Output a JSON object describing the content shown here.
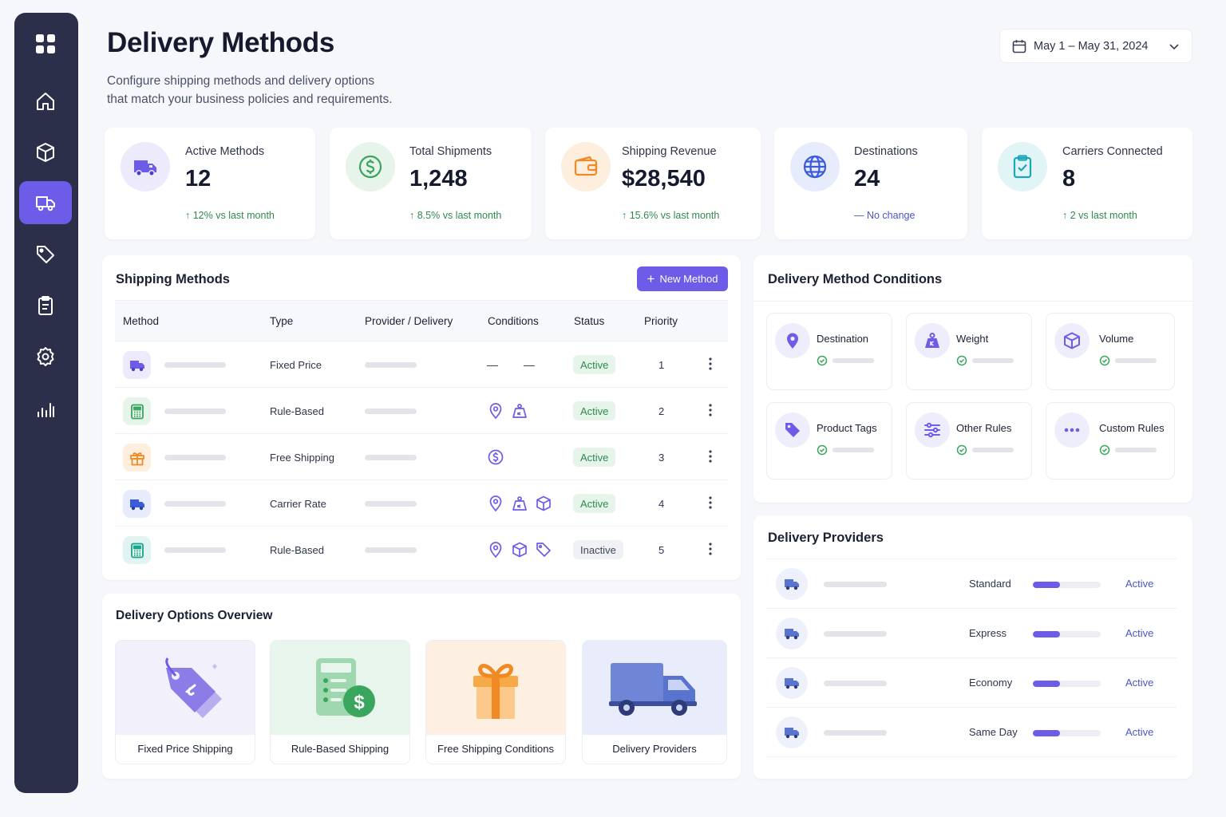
{
  "header": {
    "title": "Delivery Methods",
    "subtitle_line1": "Configure shipping methods and delivery options",
    "subtitle_line2": "that match your business policies and requirements.",
    "date_range": "May 1 – May 31, 2024"
  },
  "sidebar": {
    "items": [
      {
        "icon": "dashboard-grid-icon"
      },
      {
        "icon": "home-icon"
      },
      {
        "icon": "box-icon"
      },
      {
        "icon": "truck-icon",
        "active": true
      },
      {
        "icon": "tag-icon"
      },
      {
        "icon": "clipboard-icon"
      },
      {
        "icon": "gear-icon"
      },
      {
        "icon": "analytics-icon"
      }
    ]
  },
  "stats": [
    {
      "label": "Active Methods",
      "value": "12",
      "change": "12% vs last month",
      "trend": "up",
      "color": "#6c5ce7"
    },
    {
      "label": "Total Shipments",
      "value": "1,248",
      "change": "8.5% vs last month",
      "trend": "up",
      "color": "#3aa55d"
    },
    {
      "label": "Shipping Revenue",
      "value": "$28,540",
      "change": "15.6% vs last month",
      "trend": "up",
      "color": "#f08a24"
    },
    {
      "label": "Destinations",
      "value": "24",
      "change": "No change",
      "trend": "neutral",
      "color": "#3b5bdb"
    },
    {
      "label": "Carriers Connected",
      "value": "8",
      "change": "2 vs last month",
      "trend": "up",
      "color": "#1aa7b8"
    }
  ],
  "shipping_methods": {
    "title": "Shipping Methods",
    "new_button": "New Method",
    "columns": [
      "Method",
      "Type",
      "Provider / Delivery",
      "Conditions",
      "Status",
      "Priority"
    ],
    "rows": [
      {
        "icon": "truck-icon",
        "type": "Fixed Price",
        "conditions": [
          "none"
        ],
        "status": "Active",
        "priority": "1"
      },
      {
        "icon": "calculator-icon",
        "type": "Rule-Based",
        "conditions": [
          "location",
          "weight"
        ],
        "status": "Active",
        "priority": "2"
      },
      {
        "icon": "gift-icon",
        "type": "Free Shipping",
        "conditions": [
          "dollar"
        ],
        "status": "Active",
        "priority": "3"
      },
      {
        "icon": "truck-icon",
        "type": "Carrier Rate",
        "conditions": [
          "location",
          "weight",
          "box"
        ],
        "status": "Active",
        "priority": "4"
      },
      {
        "icon": "calculator-icon",
        "type": "Rule-Based",
        "conditions": [
          "location",
          "box",
          "tag"
        ],
        "status": "Inactive",
        "priority": "5"
      }
    ]
  },
  "delivery_options": {
    "title": "Delivery Options Overview",
    "items": [
      {
        "label": "Fixed Price Shipping"
      },
      {
        "label": "Rule-Based Shipping"
      },
      {
        "label": "Free Shipping Conditions"
      },
      {
        "label": "Delivery Providers"
      }
    ]
  },
  "conditions": {
    "title": "Delivery Method Conditions",
    "items": [
      {
        "label": "Destination",
        "icon": "location-pin-icon"
      },
      {
        "label": "Weight",
        "icon": "weight-icon"
      },
      {
        "label": "Volume",
        "icon": "box-icon"
      },
      {
        "label": "Product Tags",
        "icon": "tag-icon"
      },
      {
        "label": "Other Rules",
        "icon": "sliders-icon"
      },
      {
        "label": "Custom Rules",
        "icon": "more-dots-icon"
      }
    ]
  },
  "providers": {
    "title": "Delivery Providers",
    "items": [
      {
        "name": "Standard",
        "status": "Active",
        "progress": 0.4
      },
      {
        "name": "Express",
        "status": "Active",
        "progress": 0.4
      },
      {
        "name": "Economy",
        "status": "Active",
        "progress": 0.4
      },
      {
        "name": "Same Day",
        "status": "Active",
        "progress": 0.4
      }
    ]
  }
}
